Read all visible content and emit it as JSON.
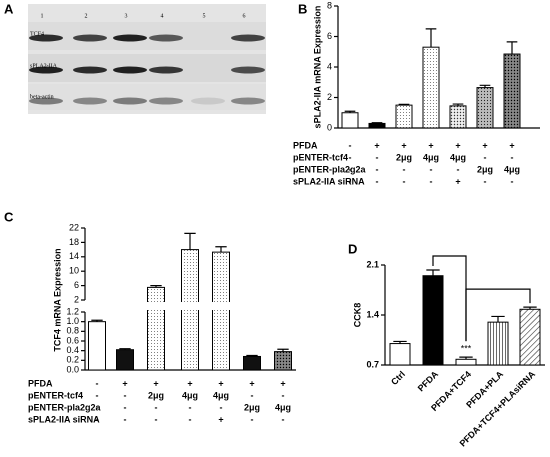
{
  "blot": {
    "panel_label": "A",
    "lanes": [
      "1",
      "2",
      "3",
      "4",
      "5",
      "6"
    ],
    "rows": [
      "TCF4",
      "sPLA2-IIA",
      "beta-actin"
    ]
  },
  "chart_data": [
    {
      "type": "bar",
      "panel_label": "B",
      "y_label": "sPLA2-IIA mRNA Expression",
      "values": [
        1.0,
        0.3,
        1.5,
        5.3,
        1.45,
        2.65,
        4.85
      ],
      "errors": [
        0.1,
        0.05,
        0.05,
        1.2,
        0.12,
        0.15,
        0.8
      ],
      "ylim": [
        0,
        8
      ],
      "yticks": [
        0,
        2,
        4,
        6,
        8
      ],
      "conditions": [
        {
          "label": "PFDA",
          "values": [
            "-",
            "+",
            "+",
            "+",
            "+",
            "+",
            "+"
          ]
        },
        {
          "label": "pENTER-tcf4",
          "values": [
            "-",
            "-",
            "2μg",
            "4μg",
            "4μg",
            "-",
            "-"
          ]
        },
        {
          "label": "pENTER-pla2g2a",
          "values": [
            "-",
            "-",
            "-",
            "-",
            "-",
            "2μg",
            "4μg"
          ]
        },
        {
          "label": "sPLA2-IIA siRNA",
          "values": [
            "-",
            "-",
            "-",
            "-",
            "+",
            "-",
            "-"
          ]
        }
      ]
    },
    {
      "type": "broken_bar",
      "panel_label": "C",
      "y_label": "TCF4 mRNA Expression",
      "values": [
        1.0,
        0.42,
        5.5,
        16,
        15.3,
        0.28,
        0.38
      ],
      "errors": [
        0.03,
        0.02,
        0.5,
        4.5,
        1.5,
        0.02,
        0.05
      ],
      "ylim_lower": [
        0,
        1.2
      ],
      "yticks_lower": [
        {
          "value": 0,
          "label": "0.0"
        },
        0.2,
        0.4,
        0.6,
        0.8,
        {
          "value": 1,
          "label": "1.0"
        },
        1.2
      ],
      "ylim_upper": [
        2,
        22
      ],
      "yticks_upper": [
        2,
        6,
        10,
        14,
        18,
        22
      ],
      "conditions": [
        {
          "label": "PFDA",
          "values": [
            "-",
            "+",
            "+",
            "+",
            "+",
            "+",
            "+"
          ]
        },
        {
          "label": "pENTER-tcf4",
          "values": [
            "-",
            "-",
            "2μg",
            "4μg",
            "4μg",
            "-",
            "-"
          ]
        },
        {
          "label": "pENTER-pla2g2a",
          "values": [
            "-",
            "-",
            "-",
            "-",
            "-",
            "2μg",
            "4μg"
          ]
        },
        {
          "label": "sPLA2-IIA siRNA",
          "values": [
            "-",
            "-",
            "-",
            "-",
            "+",
            "-",
            "-"
          ]
        }
      ]
    },
    {
      "type": "bar",
      "panel_label": "D",
      "y_label": "CCK8",
      "categories": [
        "Ctrl",
        "PFDA",
        "PFDA+TCF4",
        "PFDA+PLA",
        "PFDA+TCF4+PLAsiRNA"
      ],
      "values": [
        1.0,
        1.95,
        0.78,
        1.3,
        1.48
      ],
      "errors": [
        0.03,
        0.08,
        0.03,
        0.08,
        0.03
      ],
      "ylim": [
        0.7,
        2.1
      ],
      "yticks": [
        0.7,
        1.4,
        2.1
      ],
      "annotation": "***"
    }
  ]
}
